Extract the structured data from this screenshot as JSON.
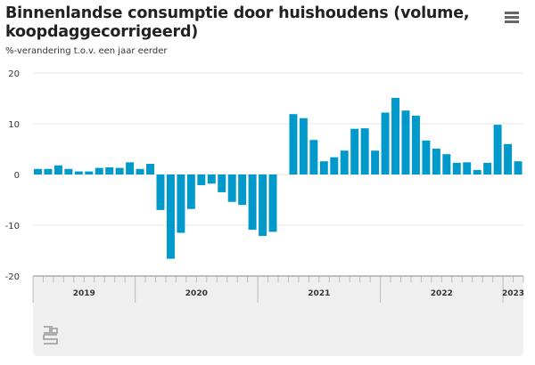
{
  "chart_data": {
    "type": "bar",
    "title": "Binnenlandse consumptie door huishoudens (volume, koopdaggecorrigeerd)",
    "subtitle": "%-verandering t.o.v. een jaar eerder",
    "xlabel": "",
    "ylabel": "",
    "ylim": [
      -20,
      20
    ],
    "yticks": [
      "20",
      "10",
      "0",
      "-10",
      "-20"
    ],
    "grid": true,
    "color": "#0099cc",
    "years": [
      {
        "label": "2019",
        "months": 10
      },
      {
        "label": "2020",
        "months": 12
      },
      {
        "label": "2021",
        "months": 12
      },
      {
        "label": "2022",
        "months": 12
      },
      {
        "label": "2023",
        "months": 2
      }
    ],
    "values": [
      1.1,
      1.1,
      1.8,
      1.1,
      0.6,
      0.6,
      1.3,
      1.4,
      1.3,
      2.4,
      1.1,
      2.1,
      -7.0,
      -16.6,
      -11.5,
      -6.8,
      -2.1,
      -1.8,
      -3.5,
      -5.4,
      -6.0,
      -10.9,
      -12.1,
      -11.3,
      0,
      11.9,
      11.1,
      6.8,
      2.6,
      3.4,
      4.7,
      9.0,
      9.1,
      4.7,
      12.2,
      15.1,
      12.6,
      11.6,
      6.7,
      5.1,
      4.0,
      2.3,
      2.4,
      0.9,
      2.3,
      9.8,
      6.0,
      2.6
    ]
  },
  "menu_icon": "hamburger-icon",
  "logo": "cbs"
}
